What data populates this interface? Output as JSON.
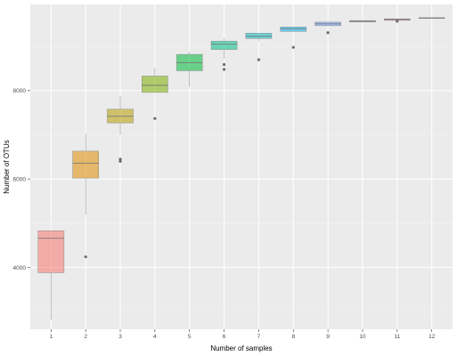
{
  "chart_data": {
    "type": "box",
    "xlabel": "Number of samples",
    "ylabel": "Number of OTUs",
    "ylim": [
      2600,
      9950
    ],
    "y_ticks": [
      4000,
      6000,
      8000
    ],
    "grid": true,
    "legend": "none",
    "categories": [
      "1",
      "2",
      "3",
      "4",
      "5",
      "6",
      "7",
      "8",
      "9",
      "10",
      "11",
      "12"
    ],
    "boxes": [
      {
        "x": "1",
        "min": 2820,
        "q1": 3880,
        "median": 4660,
        "q3": 4830,
        "max": 4830,
        "outliers": [],
        "color": "#F8766D"
      },
      {
        "x": "2",
        "min": 5200,
        "q1": 6020,
        "median": 6360,
        "q3": 6630,
        "max": 7020,
        "outliers": [
          4240
        ],
        "color": "#DE8C00"
      },
      {
        "x": "3",
        "min": 7000,
        "q1": 7270,
        "median": 7420,
        "q3": 7580,
        "max": 7880,
        "outliers": [
          6450,
          6400
        ],
        "color": "#B79F00"
      },
      {
        "x": "4",
        "min": 7960,
        "q1": 7960,
        "median": 8120,
        "q3": 8330,
        "max": 8520,
        "outliers": [
          7370
        ],
        "color": "#7CAE00"
      },
      {
        "x": "5",
        "min": 8080,
        "q1": 8450,
        "median": 8630,
        "q3": 8820,
        "max": 8880,
        "outliers": [],
        "color": "#00BA38"
      },
      {
        "x": "6",
        "min": 8720,
        "q1": 8930,
        "median": 9050,
        "q3": 9120,
        "max": 9180,
        "outliers": [
          8590,
          8480
        ],
        "color": "#00C08B"
      },
      {
        "x": "7",
        "min": 9120,
        "q1": 9180,
        "median": 9230,
        "q3": 9300,
        "max": 9300,
        "outliers": [
          8700
        ],
        "color": "#00BFC4"
      },
      {
        "x": "8",
        "min": 9340,
        "q1": 9340,
        "median": 9400,
        "q3": 9440,
        "max": 9440,
        "outliers": [
          8980
        ],
        "color": "#00B4F0"
      },
      {
        "x": "9",
        "min": 9470,
        "q1": 9470,
        "median": 9510,
        "q3": 9550,
        "max": 9550,
        "outliers": [
          9310
        ],
        "color": "#619CFF"
      },
      {
        "x": "10",
        "min": 9555,
        "q1": 9555,
        "median": 9570,
        "q3": 9585,
        "max": 9585,
        "outliers": [],
        "color": "#C77CFF"
      },
      {
        "x": "11",
        "min": 9590,
        "q1": 9590,
        "median": 9610,
        "q3": 9625,
        "max": 9625,
        "outliers": [
          9570
        ],
        "color": "#F564E3"
      },
      {
        "x": "12",
        "min": 9640,
        "q1": 9640,
        "median": 9645,
        "q3": 9650,
        "max": 9650,
        "outliers": [],
        "color": "#FF64B0"
      }
    ]
  }
}
